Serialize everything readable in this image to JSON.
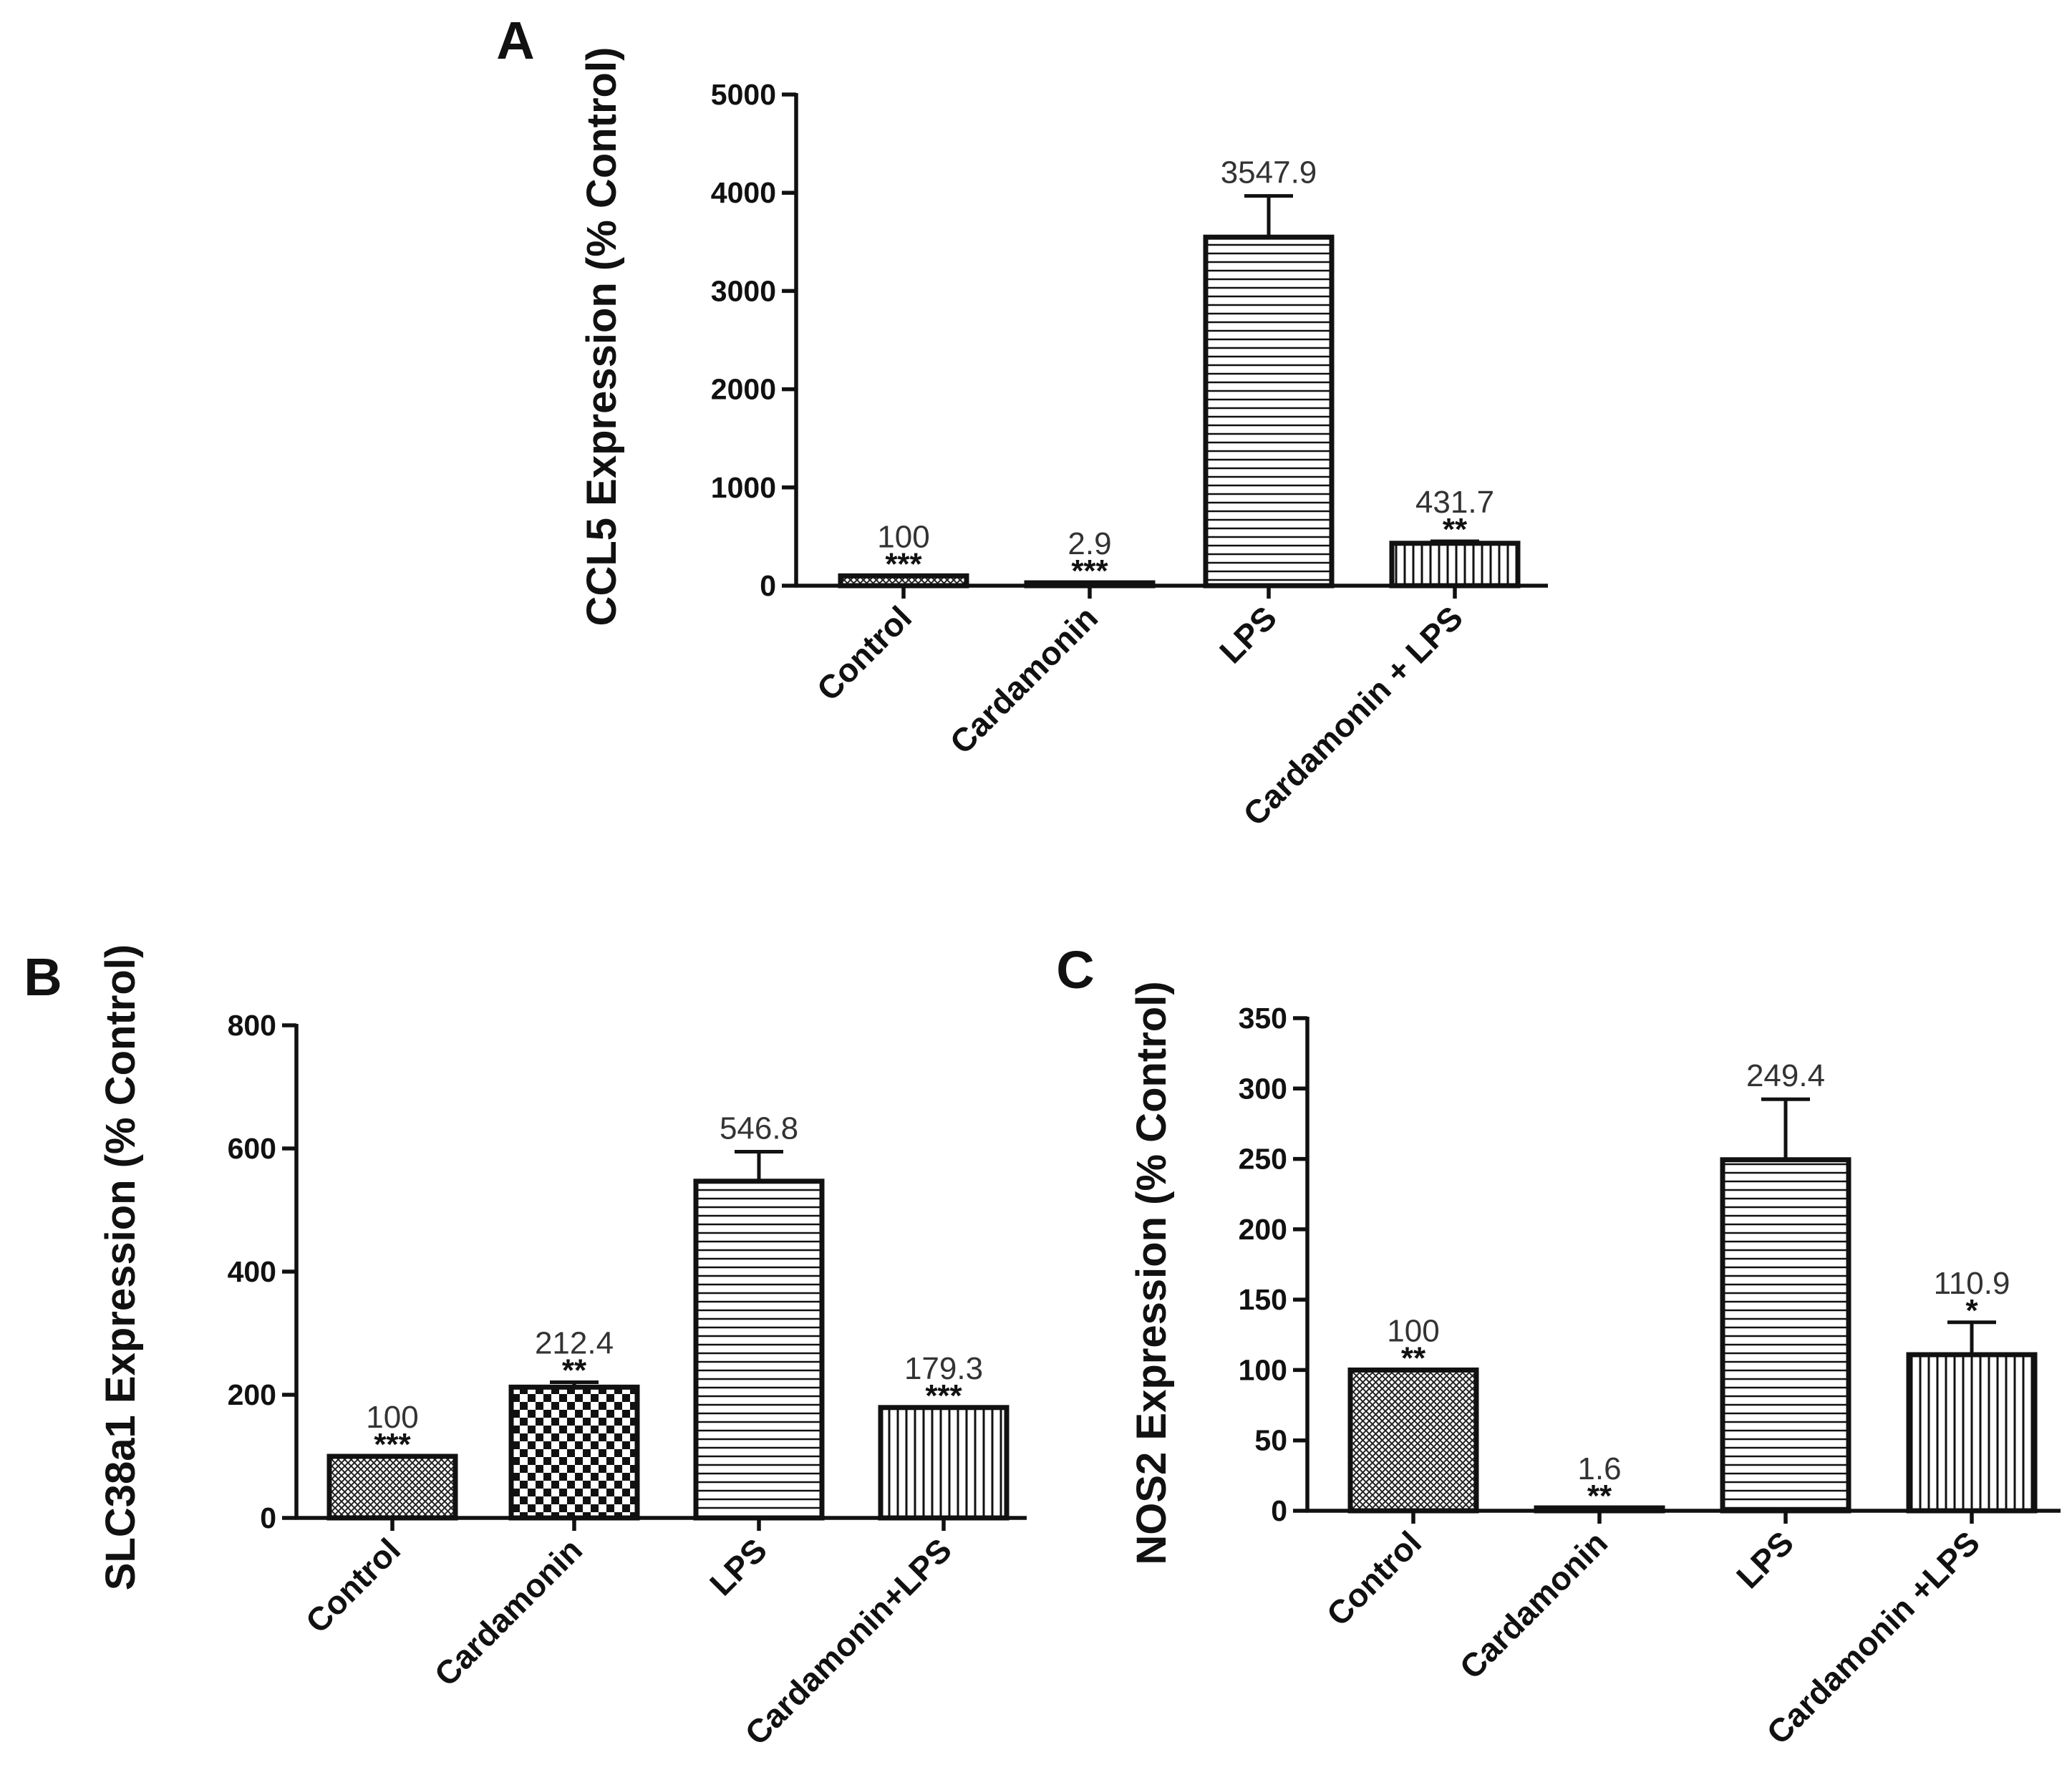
{
  "chart_data": [
    {
      "panel": "A",
      "type": "bar",
      "ylabel": "CCL5 Expression (% Control)",
      "xlabel": "",
      "ylim": [
        0,
        5000
      ],
      "yticks": [
        0,
        1000,
        2000,
        3000,
        4000,
        5000
      ],
      "categories": [
        "Control",
        "Cardamonin",
        "LPS",
        "Cardamonin + LPS"
      ],
      "values": [
        100,
        2.9,
        3547.9,
        431.7
      ],
      "value_labels": [
        "100",
        "2.9",
        "3547.9",
        "431.7"
      ],
      "error": [
        0,
        0,
        420,
        20
      ],
      "significance": [
        "***",
        "***",
        "",
        "**"
      ],
      "patterns": [
        "crosshatch",
        "crosshatch",
        "horizontal",
        "vertical"
      ]
    },
    {
      "panel": "B",
      "type": "bar",
      "ylabel": "SLC38a1 Expression (% Control)",
      "xlabel": "",
      "ylim": [
        0,
        800
      ],
      "yticks": [
        0,
        200,
        400,
        600,
        800
      ],
      "categories": [
        "Control",
        "Cardamonin",
        "LPS",
        "Cardamonin+LPS"
      ],
      "values": [
        100,
        212.4,
        546.8,
        179.3
      ],
      "value_labels": [
        "100",
        "212.4",
        "546.8",
        "179.3"
      ],
      "error": [
        0,
        8,
        48,
        0
      ],
      "significance": [
        "***",
        "**",
        "",
        "***"
      ],
      "patterns": [
        "crosshatch",
        "checker",
        "horizontal",
        "vertical"
      ]
    },
    {
      "panel": "C",
      "type": "bar",
      "ylabel": "NOS2 Expression (% Control)",
      "xlabel": "",
      "ylim": [
        0,
        350
      ],
      "yticks": [
        0,
        50,
        100,
        150,
        200,
        250,
        300,
        350
      ],
      "categories": [
        "Control",
        "Cardamonin",
        "LPS",
        "Cardamonin +LPS"
      ],
      "values": [
        100,
        1.6,
        249.4,
        110.9
      ],
      "value_labels": [
        "100",
        "1.6",
        "249.4",
        "110.9"
      ],
      "error": [
        0,
        0,
        43,
        23
      ],
      "significance": [
        "**",
        "**",
        "",
        "*"
      ],
      "patterns": [
        "crosshatch",
        "crosshatch",
        "horizontal",
        "vertical"
      ]
    }
  ]
}
